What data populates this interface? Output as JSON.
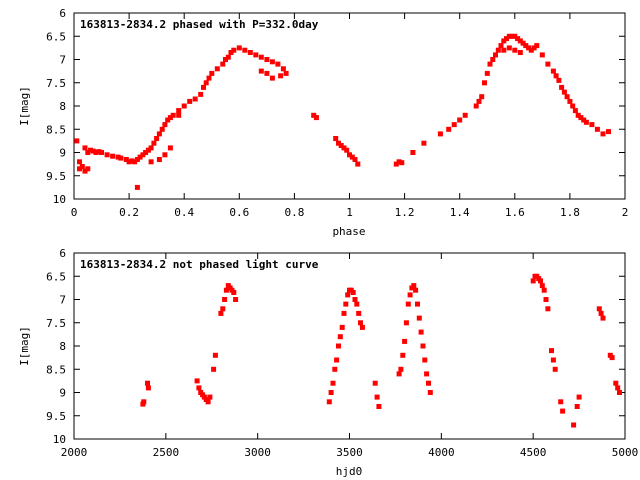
{
  "chart_data": [
    {
      "type": "scatter",
      "title": "163813-2834.2 phased with P=332.0day",
      "xlabel": "phase",
      "ylabel": "I[mag]",
      "xlim": [
        0,
        2
      ],
      "ylim": [
        6,
        10
      ],
      "y_inverted": true,
      "xticks": [
        0,
        0.2,
        0.4,
        0.6,
        0.8,
        1,
        1.2,
        1.4,
        1.6,
        1.8,
        2
      ],
      "xtick_labels": [
        "0",
        "0.2",
        "0.4",
        "0.6",
        "0.8",
        "1",
        "1.2",
        "1.4",
        "1.6",
        "1.8",
        "2"
      ],
      "yticks": [
        6,
        6.5,
        7,
        7.5,
        8,
        8.5,
        9,
        9.5,
        10
      ],
      "ytick_labels": [
        "6",
        "6.5",
        "7",
        "7.5",
        "8",
        "8.5",
        "9",
        "9.5",
        "10"
      ],
      "grid": false,
      "marker_color": "#ff0000",
      "x": [
        0.01,
        0.02,
        0.03,
        0.04,
        0.05,
        0.06,
        0.07,
        0.08,
        0.09,
        0.1,
        0.12,
        0.14,
        0.16,
        0.17,
        0.19,
        0.2,
        0.21,
        0.22,
        0.23,
        0.24,
        0.25,
        0.26,
        0.27,
        0.28,
        0.29,
        0.3,
        0.31,
        0.32,
        0.33,
        0.34,
        0.35,
        0.36,
        0.38,
        0.4,
        0.42,
        0.44,
        0.46,
        0.47,
        0.48,
        0.49,
        0.5,
        0.52,
        0.54,
        0.55,
        0.56,
        0.57,
        0.58,
        0.6,
        0.62,
        0.64,
        0.66,
        0.68,
        0.7,
        0.72,
        0.74,
        0.76,
        0.77,
        0.02,
        0.04,
        0.05,
        0.23,
        0.28,
        0.31,
        0.33,
        0.35,
        0.38,
        0.68,
        0.7,
        0.72,
        0.75,
        0.87,
        0.88,
        0.95,
        0.96,
        0.97,
        0.98,
        0.99,
        1.0,
        1.01,
        1.02,
        1.03,
        1.17,
        1.18,
        1.19,
        1.23,
        1.27,
        1.33,
        1.36,
        1.38,
        1.4,
        1.42,
        1.46,
        1.47,
        1.48,
        1.49,
        1.5,
        1.51,
        1.52,
        1.53,
        1.54,
        1.55,
        1.56,
        1.57,
        1.58,
        1.59,
        1.6,
        1.61,
        1.62,
        1.63,
        1.64,
        1.65,
        1.66,
        1.67,
        1.68,
        1.7,
        1.72,
        1.74,
        1.75,
        1.76,
        1.77,
        1.78,
        1.79,
        1.8,
        1.81,
        1.82,
        1.83,
        1.84,
        1.85,
        1.86,
        1.88,
        1.9,
        1.92,
        1.94,
        1.56,
        1.58,
        1.6,
        1.62
      ],
      "y": [
        8.75,
        9.2,
        9.3,
        8.9,
        9.35,
        8.95,
        8.97,
        9.0,
        8.98,
        9.0,
        9.05,
        9.08,
        9.1,
        9.12,
        9.15,
        9.2,
        9.18,
        9.2,
        9.15,
        9.1,
        9.05,
        9.0,
        8.95,
        8.9,
        8.8,
        8.7,
        8.6,
        8.5,
        8.4,
        8.3,
        8.25,
        8.2,
        8.1,
        8.0,
        7.9,
        7.85,
        7.75,
        7.6,
        7.5,
        7.4,
        7.3,
        7.2,
        7.1,
        7.0,
        6.95,
        6.85,
        6.8,
        6.75,
        6.8,
        6.85,
        6.9,
        6.95,
        7.0,
        7.05,
        7.1,
        7.2,
        7.3,
        9.35,
        9.4,
        9.0,
        9.75,
        9.2,
        9.15,
        9.05,
        8.9,
        8.2,
        7.25,
        7.3,
        7.4,
        7.35,
        8.2,
        8.25,
        8.7,
        8.8,
        8.85,
        8.9,
        8.95,
        9.05,
        9.1,
        9.15,
        9.25,
        9.25,
        9.2,
        9.22,
        9.0,
        8.8,
        8.6,
        8.5,
        8.4,
        8.3,
        8.2,
        8.0,
        7.9,
        7.8,
        7.5,
        7.3,
        7.1,
        7.0,
        6.9,
        6.8,
        6.7,
        6.6,
        6.55,
        6.5,
        6.5,
        6.5,
        6.55,
        6.6,
        6.65,
        6.7,
        6.75,
        6.8,
        6.75,
        6.7,
        6.9,
        7.1,
        7.25,
        7.35,
        7.45,
        7.6,
        7.7,
        7.8,
        7.9,
        8.0,
        8.1,
        8.2,
        8.25,
        8.3,
        8.35,
        8.4,
        8.5,
        8.6,
        8.55,
        6.8,
        6.75,
        6.8,
        6.85
      ]
    },
    {
      "type": "scatter",
      "title": "163813-2834.2 not phased light curve",
      "xlabel": "hjd0",
      "ylabel": "I[mag]",
      "xlim": [
        2000,
        5000
      ],
      "ylim": [
        6,
        10
      ],
      "y_inverted": true,
      "xticks": [
        2000,
        2500,
        3000,
        3500,
        4000,
        4500,
        5000
      ],
      "xtick_labels": [
        "2000",
        "2500",
        "3000",
        "3500",
        "4000",
        "4500",
        "5000"
      ],
      "yticks": [
        6,
        6.5,
        7,
        7.5,
        8,
        8.5,
        9,
        9.5,
        10
      ],
      "ytick_labels": [
        "6",
        "6.5",
        "7",
        "7.5",
        "8",
        "8.5",
        "9",
        "9.5",
        "10"
      ],
      "grid": false,
      "marker_color": "#ff0000",
      "x": [
        2375,
        2380,
        2400,
        2405,
        2670,
        2680,
        2690,
        2700,
        2710,
        2720,
        2730,
        2740,
        2760,
        2770,
        2800,
        2810,
        2820,
        2830,
        2840,
        2850,
        2860,
        2870,
        2880,
        3390,
        3400,
        3410,
        3420,
        3430,
        3440,
        3450,
        3460,
        3470,
        3480,
        3490,
        3500,
        3510,
        3520,
        3530,
        3540,
        3550,
        3560,
        3570,
        3640,
        3650,
        3660,
        3770,
        3780,
        3790,
        3800,
        3810,
        3820,
        3830,
        3840,
        3850,
        3860,
        3870,
        3880,
        3890,
        3900,
        3910,
        3920,
        3930,
        3940,
        4500,
        4510,
        4520,
        4530,
        4540,
        4550,
        4560,
        4570,
        4580,
        4600,
        4610,
        4620,
        4650,
        4660,
        4720,
        4740,
        4750,
        4860,
        4870,
        4880,
        4920,
        4930,
        4950,
        4960,
        4970
      ],
      "y": [
        9.25,
        9.2,
        8.8,
        8.9,
        8.75,
        8.9,
        9.0,
        9.05,
        9.1,
        9.15,
        9.2,
        9.1,
        8.5,
        8.2,
        7.3,
        7.2,
        7.0,
        6.8,
        6.7,
        6.75,
        6.8,
        6.85,
        7.0,
        9.2,
        9.0,
        8.8,
        8.5,
        8.3,
        8.0,
        7.8,
        7.6,
        7.3,
        7.1,
        6.9,
        6.8,
        6.8,
        6.85,
        7.0,
        7.1,
        7.3,
        7.5,
        7.6,
        8.8,
        9.1,
        9.3,
        8.6,
        8.5,
        8.2,
        7.9,
        7.5,
        7.1,
        6.9,
        6.75,
        6.7,
        6.8,
        7.1,
        7.4,
        7.7,
        8.0,
        8.3,
        8.6,
        8.8,
        9.0,
        6.6,
        6.5,
        6.5,
        6.55,
        6.6,
        6.7,
        6.8,
        7.0,
        7.2,
        8.1,
        8.3,
        8.5,
        9.2,
        9.4,
        9.7,
        9.3,
        9.1,
        7.2,
        7.3,
        7.4,
        8.2,
        8.25,
        8.8,
        8.9,
        9.0
      ]
    }
  ]
}
